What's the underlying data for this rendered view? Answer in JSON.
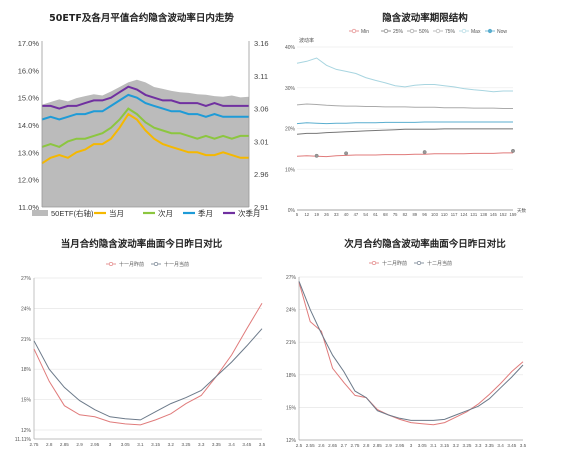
{
  "charts": {
    "iv_intraday": {
      "title": "50ETF及各月平值合约隐含波动率日内走势",
      "yticks_left": [
        "17.0%",
        "16.0%",
        "15.0%",
        "14.0%",
        "13.0%",
        "12.0%",
        "11.0%"
      ],
      "yticks_right": [
        "3.16",
        "3.11",
        "3.06",
        "3.01",
        "2.96",
        "2.91"
      ],
      "legend": [
        "50ETF(右轴)",
        "当月",
        "次月",
        "季月",
        "次季月"
      ],
      "colors": {
        "etf": "#bbbbbb",
        "m1": "#f5b800",
        "m2": "#8cc63f",
        "m3": "#1e9bd7",
        "m4": "#7030a0"
      }
    },
    "term_structure": {
      "title": "隐含波动率期限结构",
      "ylabel": "波动率",
      "xlabel": "天数",
      "legend": [
        "Min",
        "25%",
        "50%",
        "75%",
        "Max",
        "Now"
      ],
      "yticks": [
        "40%",
        "30%",
        "20%",
        "10%",
        "0%"
      ],
      "xticks": [
        "5",
        "12",
        "19",
        "26",
        "33",
        "40",
        "47",
        "54",
        "61",
        "68",
        "75",
        "82",
        "89",
        "96",
        "103",
        "110",
        "117",
        "124",
        "131",
        "138",
        "145",
        "152",
        "159"
      ],
      "colors": {
        "min": "#e07b7b",
        "p25": "#777777",
        "p50": "#999999",
        "p75": "#aaaaaa",
        "max": "#a8d5e0",
        "now": "#5aaecf"
      }
    },
    "smile_m1": {
      "title": "当月合约隐含波动率曲面今日昨日对比",
      "legend": [
        "十一月昨前",
        "十一月当前"
      ],
      "yticks": [
        "27%",
        "24%",
        "21%",
        "18%",
        "15%",
        "12%"
      ],
      "ymin_label": "11.11%",
      "xticks": [
        "2.75",
        "2.8",
        "2.85",
        "2.9",
        "2.95",
        "3",
        "3.05",
        "3.1",
        "3.15",
        "3.2",
        "3.25",
        "3.3",
        "3.35",
        "3.4",
        "3.45",
        "3.5"
      ]
    },
    "smile_m2": {
      "title": "次月合约隐含波动率曲面今日昨日对比",
      "legend": [
        "十二月昨前",
        "十二月当前"
      ],
      "yticks": [
        "27%",
        "24%",
        "21%",
        "18%",
        "15%",
        "12%"
      ],
      "xticks": [
        "2.5",
        "2.55",
        "2.6",
        "2.65",
        "2.7",
        "2.75",
        "2.8",
        "2.85",
        "2.9",
        "2.95",
        "3",
        "3.05",
        "3.1",
        "3.15",
        "3.2",
        "3.25",
        "3.3",
        "3.35",
        "3.4",
        "3.45",
        "3.5"
      ]
    }
  },
  "chart_data": [
    {
      "type": "line",
      "title": "50ETF及各月平值合约隐含波动率日内走势",
      "ylim_left": [
        11.0,
        17.0
      ],
      "ylim_right": [
        2.91,
        3.16
      ],
      "series": [
        {
          "name": "50ETF(右轴)",
          "type": "area",
          "values": [
            3.066,
            3.07,
            3.074,
            3.071,
            3.076,
            3.079,
            3.082,
            3.08,
            3.086,
            3.093,
            3.1,
            3.104,
            3.1,
            3.093,
            3.09,
            3.087,
            3.085,
            3.084,
            3.082,
            3.081,
            3.079,
            3.078,
            3.08,
            3.077,
            3.078
          ]
        },
        {
          "name": "当月",
          "values": [
            12.6,
            12.8,
            12.9,
            12.8,
            13.0,
            13.1,
            13.3,
            13.3,
            13.5,
            13.9,
            14.4,
            14.2,
            13.8,
            13.5,
            13.3,
            13.2,
            13.1,
            13.0,
            13.0,
            12.9,
            12.9,
            13.0,
            12.9,
            12.8,
            12.8
          ]
        },
        {
          "name": "次月",
          "values": [
            13.2,
            13.3,
            13.2,
            13.4,
            13.5,
            13.5,
            13.6,
            13.7,
            13.9,
            14.2,
            14.6,
            14.4,
            14.1,
            13.9,
            13.8,
            13.7,
            13.7,
            13.6,
            13.5,
            13.6,
            13.5,
            13.6,
            13.5,
            13.6,
            13.6
          ]
        },
        {
          "name": "季月",
          "values": [
            14.2,
            14.3,
            14.2,
            14.3,
            14.4,
            14.4,
            14.5,
            14.5,
            14.7,
            14.9,
            15.1,
            15.0,
            14.8,
            14.7,
            14.6,
            14.5,
            14.5,
            14.4,
            14.4,
            14.3,
            14.4,
            14.3,
            14.3,
            14.3,
            14.3
          ]
        },
        {
          "name": "次季月",
          "values": [
            14.7,
            14.7,
            14.6,
            14.7,
            14.7,
            14.8,
            14.9,
            14.9,
            15.0,
            15.2,
            15.4,
            15.3,
            15.1,
            15.0,
            14.9,
            14.9,
            14.8,
            14.8,
            14.8,
            14.7,
            14.8,
            14.7,
            14.7,
            14.7,
            14.7
          ]
        }
      ]
    },
    {
      "type": "line",
      "title": "隐含波动率期限结构",
      "x": [
        5,
        12,
        19,
        26,
        33,
        40,
        47,
        54,
        61,
        68,
        75,
        82,
        89,
        96,
        103,
        110,
        117,
        124,
        131,
        138,
        145,
        152,
        159
      ],
      "ylim": [
        0,
        40
      ],
      "series": [
        {
          "name": "Max",
          "values": [
            36.0,
            36.5,
            37.3,
            35.5,
            34.5,
            34.0,
            33.5,
            32.5,
            31.8,
            31.2,
            30.5,
            30.2,
            30.6,
            30.8,
            30.8,
            30.5,
            30.2,
            29.8,
            29.5,
            29.3,
            29.0,
            29.2,
            29.2
          ]
        },
        {
          "name": "75%",
          "values": [
            25.8,
            26.0,
            25.9,
            25.7,
            25.6,
            25.5,
            25.5,
            25.4,
            25.4,
            25.3,
            25.3,
            25.3,
            25.2,
            25.2,
            25.2,
            25.1,
            25.1,
            25.1,
            25.0,
            25.0,
            25.0,
            24.9,
            24.9
          ]
        },
        {
          "name": "50%",
          "values": [
            21.2,
            21.4,
            21.3,
            21.2,
            21.3,
            21.3,
            21.4,
            21.4,
            21.4,
            21.5,
            21.5,
            21.5,
            21.5,
            21.6,
            21.6,
            21.6,
            21.6,
            21.6,
            21.6,
            21.6,
            21.6,
            21.6,
            21.6
          ]
        },
        {
          "name": "25%",
          "values": [
            18.6,
            18.8,
            18.8,
            19.0,
            19.1,
            19.2,
            19.3,
            19.4,
            19.5,
            19.6,
            19.7,
            19.8,
            19.8,
            19.8,
            19.8,
            19.9,
            19.9,
            19.9,
            19.9,
            19.9,
            19.9,
            19.9,
            19.9
          ]
        },
        {
          "name": "Min",
          "values": [
            13.2,
            13.3,
            13.2,
            13.1,
            13.3,
            13.4,
            13.5,
            13.5,
            13.5,
            13.6,
            13.6,
            13.6,
            13.7,
            13.7,
            13.8,
            13.8,
            13.8,
            13.8,
            13.9,
            13.9,
            13.9,
            14.0,
            14.0
          ]
        },
        {
          "name": "Now",
          "type": "scatter",
          "x": [
            19,
            40,
            96,
            159
          ],
          "values": [
            13.3,
            13.9,
            14.2,
            14.5
          ]
        }
      ]
    },
    {
      "type": "line",
      "title": "当月合约隐含波动率曲面今日昨日对比",
      "x": [
        2.75,
        2.8,
        2.85,
        2.9,
        2.95,
        3,
        3.05,
        3.1,
        3.15,
        3.2,
        3.25,
        3.3,
        3.35,
        3.4,
        3.45,
        3.5
      ],
      "ylim": [
        11.11,
        27
      ],
      "series": [
        {
          "name": "十一月昨前",
          "values": [
            20.0,
            16.8,
            14.4,
            13.5,
            13.3,
            12.8,
            12.6,
            12.5,
            13.0,
            13.6,
            14.6,
            15.4,
            17.3,
            19.4,
            22.0,
            24.5
          ]
        },
        {
          "name": "十一月当前",
          "values": [
            20.8,
            18.0,
            16.2,
            14.9,
            14.0,
            13.3,
            13.1,
            13.0,
            13.8,
            14.6,
            15.2,
            15.9,
            17.3,
            18.7,
            20.3,
            22.0
          ]
        }
      ]
    },
    {
      "type": "line",
      "title": "次月合约隐含波动率曲面今日昨日对比",
      "x": [
        2.5,
        2.55,
        2.6,
        2.65,
        2.7,
        2.75,
        2.8,
        2.85,
        2.9,
        2.95,
        3,
        3.05,
        3.1,
        3.15,
        3.2,
        3.25,
        3.3,
        3.35,
        3.4,
        3.45,
        3.5
      ],
      "ylim": [
        12,
        27
      ],
      "series": [
        {
          "name": "十二月昨前",
          "values": [
            26.5,
            22.9,
            22.0,
            18.6,
            17.3,
            16.1,
            15.9,
            14.8,
            14.3,
            13.9,
            13.6,
            13.5,
            13.4,
            13.6,
            14.1,
            14.6,
            15.3,
            16.2,
            17.2,
            18.3,
            19.2
          ]
        },
        {
          "name": "十二月当前",
          "values": [
            26.6,
            24.0,
            21.8,
            19.8,
            18.3,
            16.5,
            15.9,
            14.7,
            14.3,
            14.0,
            13.8,
            13.8,
            13.8,
            13.9,
            14.3,
            14.7,
            15.1,
            15.8,
            16.8,
            17.8,
            18.9
          ]
        }
      ]
    }
  ]
}
